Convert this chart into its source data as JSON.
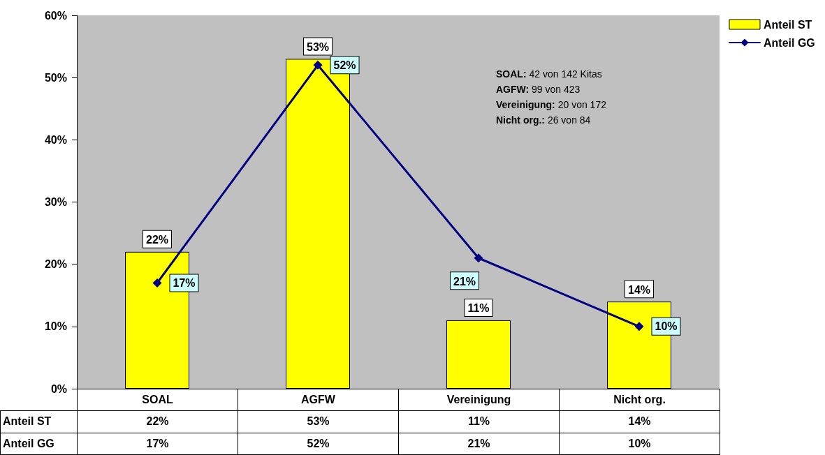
{
  "chart_data": {
    "type": "bar",
    "categories": [
      "SOAL",
      "AGFW",
      "Vereinigung",
      "Nicht org."
    ],
    "series": [
      {
        "name": "Anteil ST",
        "color": "#ffff00",
        "values": [
          22,
          53,
          11,
          14
        ],
        "value_labels": [
          "22%",
          "53%",
          "11%",
          "14%"
        ]
      },
      {
        "name": "Anteil GG",
        "type": "line",
        "color": "#000080",
        "values": [
          17,
          52,
          21,
          10
        ],
        "value_labels": [
          "17%",
          "52%",
          "21%",
          "10%"
        ]
      }
    ],
    "ylim": [
      0,
      60
    ],
    "yticks": [
      {
        "value": 0,
        "label": "0%"
      },
      {
        "value": 10,
        "label": "10%"
      },
      {
        "value": 20,
        "label": "20%"
      },
      {
        "value": 30,
        "label": "30%"
      },
      {
        "value": 40,
        "label": "40%"
      },
      {
        "value": 50,
        "label": "50%"
      },
      {
        "value": 60,
        "label": "60%"
      }
    ],
    "grid": false,
    "legend": "top right",
    "marker": "diamond",
    "line_style": "solid",
    "annotations": [
      "SOAL: 42 von 142 Kitas",
      "AGFW: 99 von 423",
      "Vereinigung: 20 von 172",
      "Nicht org.: 26 von 84"
    ]
  }
}
